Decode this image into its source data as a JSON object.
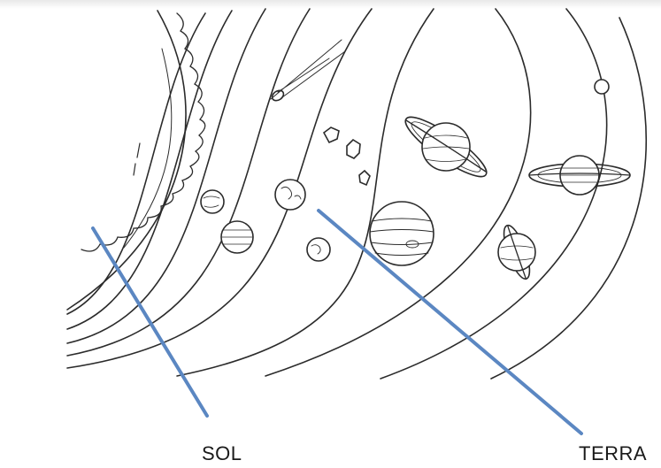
{
  "labels": {
    "sol": "SOL",
    "terra": "TERRA"
  },
  "colors": {
    "pointer_line": "#5b87c2",
    "outline": "#2b2b2b",
    "background": "#ffffff"
  }
}
